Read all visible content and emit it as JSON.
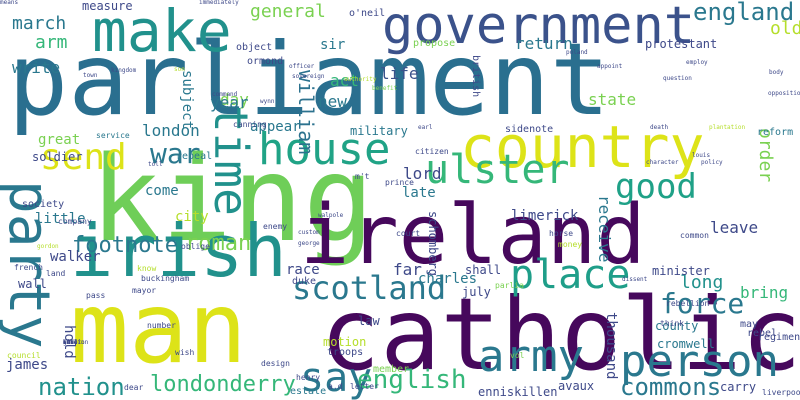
{
  "words": [
    {
      "text": "parliament",
      "color": "#2a6f8f"
    },
    {
      "text": "king",
      "color": "#6fce58"
    },
    {
      "text": "man",
      "color": "#dde318"
    },
    {
      "text": "catholic",
      "color": "#46085c"
    },
    {
      "text": "ireland",
      "color": "#46085c"
    },
    {
      "text": "country",
      "color": "#dde318"
    },
    {
      "text": "government",
      "color": "#3b528b"
    },
    {
      "text": "make",
      "color": "#21918c"
    },
    {
      "text": "irish",
      "color": "#21918c"
    },
    {
      "text": "house",
      "color": "#20a386"
    },
    {
      "text": "person",
      "color": "#2a788e"
    },
    {
      "text": "army",
      "color": "#2a788e"
    },
    {
      "text": "party",
      "color": "#2a788e"
    },
    {
      "text": "place",
      "color": "#1f9e89"
    },
    {
      "text": "scotland",
      "color": "#2a788e"
    },
    {
      "text": "ulster",
      "color": "#35b779"
    },
    {
      "text": "time",
      "color": "#21918c"
    },
    {
      "text": "send",
      "color": "#dde318"
    },
    {
      "text": "good",
      "color": "#1fa187"
    },
    {
      "text": "say",
      "color": "#2a788e"
    },
    {
      "text": "force",
      "color": "#2a788e"
    },
    {
      "text": "england",
      "color": "#2a788e"
    },
    {
      "text": "english",
      "color": "#35b779"
    },
    {
      "text": "war",
      "color": "#2a788e"
    },
    {
      "text": "commons",
      "color": "#2a788e"
    },
    {
      "text": "londonderry",
      "color": "#35b779"
    },
    {
      "text": "nation",
      "color": "#21918c"
    },
    {
      "text": "footnote",
      "color": "#2a788e"
    },
    {
      "text": "roman",
      "color": "#7ad151"
    },
    {
      "text": "william",
      "color": "#2c728e"
    },
    {
      "text": "march",
      "color": "#2a788e"
    },
    {
      "text": "general",
      "color": "#7ad151"
    },
    {
      "text": "old",
      "color": "#b5de2b"
    },
    {
      "text": "arm",
      "color": "#35b779"
    },
    {
      "text": "return",
      "color": "#2a788e"
    },
    {
      "text": "london",
      "color": "#2a788e"
    },
    {
      "text": "receive",
      "color": "#2a788e"
    },
    {
      "text": "order",
      "color": "#7ad151"
    },
    {
      "text": "leave",
      "color": "#3e4989"
    },
    {
      "text": "long",
      "color": "#21918c"
    },
    {
      "text": "bring",
      "color": "#35b779"
    },
    {
      "text": "write",
      "color": "#2a788e"
    },
    {
      "text": "day",
      "color": "#7ad151"
    },
    {
      "text": "year",
      "color": "#2a788e"
    },
    {
      "text": "new",
      "color": "#2a788e"
    },
    {
      "text": "act",
      "color": "#35b779"
    },
    {
      "text": "life",
      "color": "#3b528b"
    },
    {
      "text": "sir",
      "color": "#2a788e"
    },
    {
      "text": "state",
      "color": "#7ad151"
    },
    {
      "text": "protestant",
      "color": "#3e4989"
    },
    {
      "text": "great",
      "color": "#7ad151"
    },
    {
      "text": "appear",
      "color": "#2a788e"
    },
    {
      "text": "military",
      "color": "#2a788e"
    },
    {
      "text": "lord",
      "color": "#3e4989"
    },
    {
      "text": "late",
      "color": "#2a788e"
    },
    {
      "text": "limerick",
      "color": "#3e4989"
    },
    {
      "text": "city",
      "color": "#b5de2b"
    },
    {
      "text": "come",
      "color": "#2a788e"
    },
    {
      "text": "little",
      "color": "#2a788e"
    },
    {
      "text": "walker",
      "color": "#3e4989"
    },
    {
      "text": "far",
      "color": "#3e4989"
    },
    {
      "text": "charles",
      "color": "#2a788e"
    },
    {
      "text": "race",
      "color": "#3e4989"
    },
    {
      "text": "hold",
      "color": "#3e4989"
    },
    {
      "text": "james",
      "color": "#3e4989"
    },
    {
      "text": "county",
      "color": "#2a788e"
    },
    {
      "text": "cromwell",
      "color": "#2a788e"
    },
    {
      "text": "thousand",
      "color": "#3e4989"
    },
    {
      "text": "minister",
      "color": "#3e4989"
    },
    {
      "text": "carry",
      "color": "#3e4989"
    },
    {
      "text": "avaux",
      "color": "#3e4989"
    },
    {
      "text": "enniskillen",
      "color": "#3e4989"
    },
    {
      "text": "estate",
      "color": "#2a788e"
    },
    {
      "text": "motion",
      "color": "#b5de2b"
    },
    {
      "text": "law",
      "color": "#3e4989"
    },
    {
      "text": "july",
      "color": "#3e4989"
    },
    {
      "text": "shall",
      "color": "#3e4989"
    },
    {
      "text": "subject",
      "color": "#2a788e"
    },
    {
      "text": "schomberg",
      "color": "#3e4989"
    },
    {
      "text": "measure",
      "color": "#3e4989"
    },
    {
      "text": "wall",
      "color": "#3e4989"
    },
    {
      "text": "duke",
      "color": "#3e4989"
    },
    {
      "text": "soldier",
      "color": "#3e4989"
    },
    {
      "text": "society",
      "color": "#3e4989"
    },
    {
      "text": "repeal",
      "color": "#2a788e"
    },
    {
      "text": "object",
      "color": "#3e4989"
    },
    {
      "text": "ormond",
      "color": "#3e4989"
    },
    {
      "text": "british",
      "color": "#3e4989"
    },
    {
      "text": "propose",
      "color": "#7ad151"
    },
    {
      "text": "o'neil",
      "color": "#3e4989"
    },
    {
      "text": "sidenote",
      "color": "#3e4989"
    },
    {
      "text": "reform",
      "color": "#2a788e"
    },
    {
      "text": "may",
      "color": "#3e4989"
    },
    {
      "text": "rebel",
      "color": "#3e4989"
    },
    {
      "text": "regiment",
      "color": "#3e4989"
    },
    {
      "text": "troops",
      "color": "#3e4989"
    },
    {
      "text": "member",
      "color": "#7ad151"
    },
    {
      "text": "dear",
      "color": "#3e4989"
    },
    {
      "text": "liverpool",
      "color": "#3e4989"
    },
    {
      "text": "service",
      "color": "#2a788e"
    },
    {
      "text": "canning",
      "color": "#3e4989"
    },
    {
      "text": "enemy",
      "color": "#3e4989"
    },
    {
      "text": "french",
      "color": "#3e4989"
    },
    {
      "text": "land",
      "color": "#3e4989"
    },
    {
      "text": "pass",
      "color": "#3e4989"
    },
    {
      "text": "mayor",
      "color": "#3e4989"
    },
    {
      "text": "number",
      "color": "#3e4989"
    },
    {
      "text": "council",
      "color": "#b5de2b"
    },
    {
      "text": "wish",
      "color": "#3e4989"
    },
    {
      "text": "design",
      "color": "#3e4989"
    },
    {
      "text": "henry",
      "color": "#3e4989"
    },
    {
      "text": "vol",
      "color": "#7ad151"
    },
    {
      "text": "letter",
      "color": "#3e4989"
    },
    {
      "text": "a.d",
      "color": "#3e4989"
    },
    {
      "text": "parlia",
      "color": "#7ad151"
    },
    {
      "text": "prince",
      "color": "#3e4989"
    },
    {
      "text": "court",
      "color": "#3e4989"
    },
    {
      "text": "horse",
      "color": "#3e4989"
    },
    {
      "text": "money",
      "color": "#b5de2b"
    },
    {
      "text": "common",
      "color": "#3e4989"
    },
    {
      "text": "citizen",
      "color": "#3e4989"
    },
    {
      "text": "m't",
      "color": "#3e4989"
    },
    {
      "text": "company",
      "color": "#3e4989"
    },
    {
      "text": "oblige",
      "color": "#3e4989"
    },
    {
      "text": "know",
      "color": "#b5de2b"
    },
    {
      "text": "buckingham",
      "color": "#3e4989"
    },
    {
      "text": "think",
      "color": "#3e4989"
    },
    {
      "text": "rebellion",
      "color": "#3e4989"
    },
    {
      "text": "kingdom",
      "color": "#3e4989"
    },
    {
      "text": "town",
      "color": "#3e4989"
    },
    {
      "text": "command",
      "color": "#3e4989"
    },
    {
      "text": "officer",
      "color": "#3e4989"
    },
    {
      "text": "wynn",
      "color": "#3e4989"
    },
    {
      "text": "sovereign",
      "color": "#3e4989"
    },
    {
      "text": "authority",
      "color": "#b5de2b"
    },
    {
      "text": "benefit",
      "color": "#7ad151"
    },
    {
      "text": "appoint",
      "color": "#3e4989"
    },
    {
      "text": "employ",
      "color": "#3e4989"
    },
    {
      "text": "question",
      "color": "#3e4989"
    },
    {
      "text": "body",
      "color": "#3e4989"
    },
    {
      "text": "opposition",
      "color": "#3e4989"
    },
    {
      "text": "plantation",
      "color": "#b5de2b"
    },
    {
      "text": "immediately",
      "color": "#3e4989"
    },
    {
      "text": "earl",
      "color": "#3e4989"
    },
    {
      "text": "son",
      "color": "#b5de2b"
    },
    {
      "text": "toll",
      "color": "#3e4989"
    },
    {
      "text": "poland",
      "color": "#3e4989"
    },
    {
      "text": "death",
      "color": "#3e4989"
    },
    {
      "text": "louis",
      "color": "#3e4989"
    },
    {
      "text": "policy",
      "color": "#3e4989"
    },
    {
      "text": "character",
      "color": "#3e4989"
    },
    {
      "text": "walpole",
      "color": "#3e4989"
    },
    {
      "text": "george",
      "color": "#3e4989"
    },
    {
      "text": "custom",
      "color": "#3e4989"
    },
    {
      "text": "dissent",
      "color": "#3e4989"
    },
    {
      "text": "gordon",
      "color": "#b5de2b"
    },
    {
      "text": "mention",
      "color": "#3e4989"
    },
    {
      "text": "hand",
      "color": "#3e4989"
    },
    {
      "text": "side",
      "color": "#3e4989"
    },
    {
      "text": "fall",
      "color": "#3e4989"
    },
    {
      "text": "remain",
      "color": "#3e4989"
    },
    {
      "text": "great",
      "color": "#3e4989"
    },
    {
      "text": "vote",
      "color": "#3e4989"
    },
    {
      "text": "case",
      "color": "#3e4989"
    },
    {
      "text": "means",
      "color": "#3e4989"
    }
  ]
}
